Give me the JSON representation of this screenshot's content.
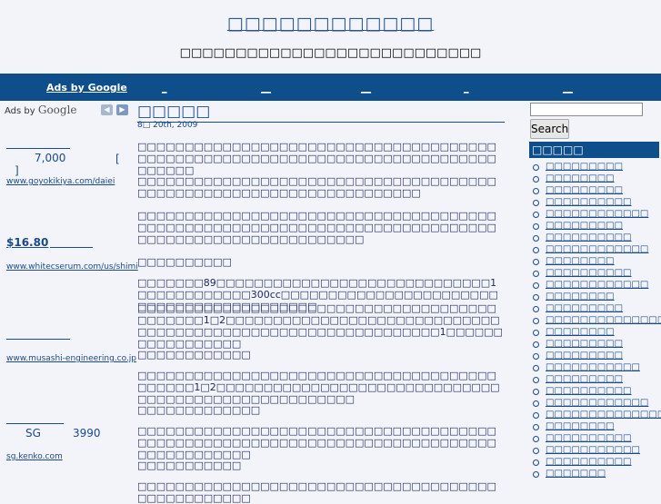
{
  "header": {
    "site_title": "□□□□□□□□□□□□",
    "site_description": "□□□□□□□□□□□□□□□□□□□□□□□□□□□"
  },
  "nav": {
    "ads_by_google": "Ads by Google",
    "items": [
      "_",
      "__",
      "__",
      "_",
      "__"
    ]
  },
  "left_ads": {
    "header_text": "Ads by",
    "header_brand": "Google",
    "prev_label": "◀",
    "next_label": "▶",
    "ads": [
      {
        "price": "7,000",
        "bracket_open": "[",
        "bracket_close": "]",
        "url": "www.goyokikiya.com/daiei"
      },
      {
        "price": "$16.80",
        "url": "www.whitecserum.com/us/shimi"
      },
      {
        "url": "www.musashi-engineering.co.jp"
      },
      {
        "prefix": "SG",
        "price": "3990",
        "url": "sg.kenko.com"
      }
    ]
  },
  "post": {
    "title": "□□□□□",
    "date": "8□ 20th, 2009",
    "paragraphs": [
      "□□□□□□□□□□□□□□□□□□□□□□□□□□□□□□□□□□□□□□□□□□□□□□□□□□□□□□□□□□□□□□□□□□□□□□□□□□□□□□□□□□",
      "□□□□□□□□□□□□□□□□□□□□□□□□□□□□□□□□□□□□□□□□□□□□□□□□□□□□□□□□□□□□□□□□□□□□",
      "□□□□□□□□□□□□□□□□□□□□□□□□□□□□□□□□□□□□□□□□□□□□□□□□□□□□□□□□□□□□□□□□□□□□□□□□□□□□□□□□□□□□□□□□□□□□□□□□□□□□",
      "□□□□□□□□□□",
      "□□□□□□□89□□□□□□□□□□□□□□□□□□□□□□□□□□□□□1□□□□□□□□□□□□300cc□□□□□□□□□□□□□□□□□□□□□□□□□□□□□□□□□□□□□□□□□□",
      "□□□□□□□□□□□□□□□□□□□□□□□□□□□□□□□□□□□□□□□□□□□□□1□2□□□□□□□□□□□□□□□□□□□□□□□□□□□□□□□□□□□□□□□□□□□□□□□□□□□□□□□□□□□□□1□□□□□□□□□□□□□□□□□",
      "□□□□□□□□□□□□",
      "□□□□□□□□□□□□□□□□□□□□□□□□□□□□□□□□□□□□□□□□□□□□1□2□□□□□□□□□□□□□□□□□□□□□□□□□□□□□□□□□□□□□□□□□□□□□□□□□□□□□",
      "□□□□□□□□□□□□□",
      "□□□□□□□□□□□□□□□□□□□□□□□□□□□□□□□□□□□□□□□□□□□□□□□□□□□□□□□□□□□□□□□□□□□□□□□□□□□□□□□□□□□□□□□□",
      "□□□□□□□□□□□",
      "□□□□□□□□□□□□□□□□□□□□□□□□□□□□□□□□□□□□□□□□□□□□□□□□□□"
    ]
  },
  "sidebar": {
    "search_placeholder": "",
    "search_button": "Search",
    "categories_heading": "□□□□□",
    "categories": [
      "□□□□□□□□□",
      "□□□□□□□□",
      "□□□□□□□□□",
      "□□□□□□□□□□",
      "□□□□□□□□□□□□",
      "□□□□□□□□□",
      "□□□□□□□□□□",
      "□□□□□□□□□□□□",
      "□□□□□□□□",
      "□□□□□□□□□□",
      "□□□□□□□□□□□□",
      "□□□□□□□□",
      "□□□□□□□□□",
      "□□□□□□□□□□□□□□□□",
      "□□□□□□□□",
      "□□□□□□□□□",
      "□□□□□□□□□",
      "□□□□□□□□□□□",
      "□□□□□□□□□",
      "□□□□□□□□□□",
      "□□□□□□□□□□□□",
      "□□□□□□□□□□□□□□",
      "□□□□□□□□",
      "□□□□□□□□□□",
      "□□□□□□□□□□□",
      "□□□□□□□□□□",
      "□□□□□□□"
    ]
  }
}
